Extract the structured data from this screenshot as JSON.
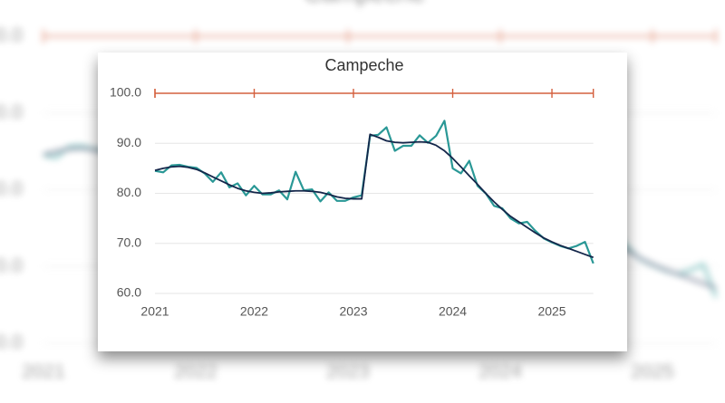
{
  "chart_data": {
    "type": "line",
    "title": "Campeche",
    "x": [
      2021.0,
      2021.083,
      2021.167,
      2021.25,
      2021.333,
      2021.417,
      2021.5,
      2021.583,
      2021.667,
      2021.75,
      2021.833,
      2021.917,
      2022.0,
      2022.083,
      2022.167,
      2022.25,
      2022.333,
      2022.417,
      2022.5,
      2022.583,
      2022.667,
      2022.75,
      2022.833,
      2022.917,
      2023.0,
      2023.083,
      2023.167,
      2023.25,
      2023.333,
      2023.417,
      2023.5,
      2023.583,
      2023.667,
      2023.75,
      2023.833,
      2023.917,
      2024.0,
      2024.083,
      2024.167,
      2024.25,
      2024.333,
      2024.417,
      2024.5,
      2024.583,
      2024.667,
      2024.75,
      2024.833,
      2024.917,
      2025.0,
      2025.083,
      2025.167,
      2025.25,
      2025.333,
      2025.417
    ],
    "series": [
      {
        "color": "#2a9896",
        "values": [
          84.5,
          84.2,
          85.6,
          85.7,
          85.3,
          85.1,
          84.0,
          82.3,
          84.2,
          81.2,
          82.0,
          79.6,
          81.5,
          79.8,
          79.8,
          80.6,
          78.8,
          84.3,
          80.6,
          80.8,
          78.4,
          80.2,
          78.5,
          78.5,
          79.2,
          79.6,
          91.5,
          91.7,
          93.2,
          88.5,
          89.5,
          89.5,
          91.6,
          90.1,
          91.5,
          94.5,
          85.0,
          84.0,
          86.5,
          81.5,
          80.0,
          77.5,
          77.0,
          75.0,
          74.0,
          74.3,
          72.5,
          71.0,
          70.2,
          69.5,
          69.0,
          69.5,
          70.3,
          66.0
        ]
      },
      {
        "color": "#14264a",
        "values": [
          84.6,
          85.0,
          85.3,
          85.4,
          85.2,
          84.8,
          84.1,
          83.3,
          82.5,
          81.7,
          81.0,
          80.5,
          80.2,
          80.0,
          80.1,
          80.3,
          80.4,
          80.5,
          80.5,
          80.4,
          80.2,
          79.8,
          79.3,
          79.0,
          78.9,
          78.9,
          91.8,
          91.2,
          90.5,
          90.2,
          90.1,
          90.2,
          90.3,
          90.2,
          89.6,
          88.5,
          87.0,
          85.3,
          83.5,
          81.8,
          80.0,
          78.3,
          76.8,
          75.4,
          74.3,
          73.2,
          72.1,
          71.1,
          70.3,
          69.6,
          69.0,
          68.4,
          67.8,
          67.2
        ]
      }
    ],
    "reference_line": {
      "value": 100,
      "color": "#d4603e"
    },
    "xlim": [
      2021,
      2025.417
    ],
    "xticks": [
      2021,
      2022,
      2023,
      2024,
      2025
    ],
    "ylim": [
      60,
      100
    ],
    "yticks": [
      {
        "value": 60,
        "label": "60.0"
      },
      {
        "value": 70,
        "label": "70.0"
      },
      {
        "value": 80,
        "label": "80.0"
      },
      {
        "value": 90,
        "label": "90.0"
      },
      {
        "value": 100,
        "label": "100.0"
      }
    ],
    "grid": true
  }
}
